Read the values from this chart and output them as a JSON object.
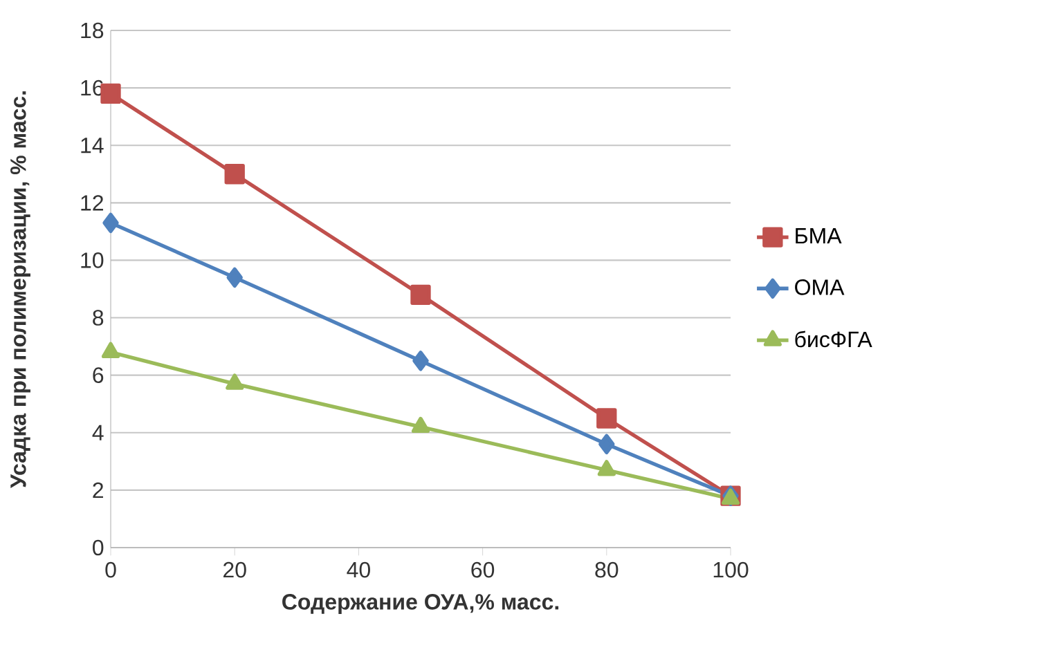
{
  "chart_data": {
    "type": "line",
    "xlabel": "Содержание ОУА,% масс.",
    "ylabel": "Усадка при полимеризации, % масс.",
    "x": [
      0,
      20,
      50,
      80,
      100
    ],
    "series": [
      {
        "name": "БМА",
        "color": "#c0504d",
        "marker": "square",
        "values": [
          15.8,
          13.0,
          8.8,
          4.5,
          1.8
        ]
      },
      {
        "name": "ОМА",
        "color": "#4f81bd",
        "marker": "diamond",
        "values": [
          11.3,
          9.4,
          6.5,
          3.6,
          1.8
        ]
      },
      {
        "name": "бисФГА",
        "color": "#9bbb59",
        "marker": "triangle",
        "values": [
          6.8,
          5.7,
          4.2,
          2.7,
          1.7
        ]
      }
    ],
    "xlim": [
      0,
      100
    ],
    "xticks": [
      0,
      20,
      40,
      60,
      80,
      100
    ],
    "ylim": [
      0,
      18
    ],
    "yticks": [
      0,
      2,
      4,
      6,
      8,
      10,
      12,
      14,
      16,
      18
    ],
    "grid": "y",
    "legend": "right",
    "line_style": "solid"
  }
}
